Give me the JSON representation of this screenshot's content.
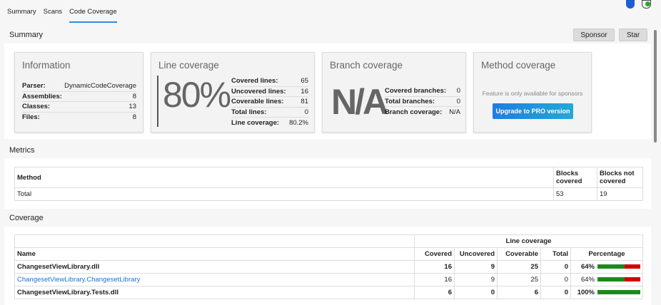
{
  "tabs": [
    {
      "label": "Summary"
    },
    {
      "label": "Scans"
    },
    {
      "label": "Code Coverage"
    }
  ],
  "summary": {
    "title": "Summary",
    "sponsor": "Sponsor",
    "star": "Star"
  },
  "information": {
    "title": "Information",
    "rows": [
      {
        "k": "Parser:",
        "v": "DynamicCodeCoverage"
      },
      {
        "k": "Assemblies:",
        "v": "8"
      },
      {
        "k": "Classes:",
        "v": "13"
      },
      {
        "k": "Files:",
        "v": "8"
      }
    ]
  },
  "line_coverage": {
    "title": "Line coverage",
    "big": "80%",
    "rows": [
      {
        "k": "Covered lines:",
        "v": "65"
      },
      {
        "k": "Uncovered lines:",
        "v": "16"
      },
      {
        "k": "Coverable lines:",
        "v": "81"
      },
      {
        "k": "Total lines:",
        "v": "0"
      },
      {
        "k": "Line coverage:",
        "v": "80.2%"
      }
    ]
  },
  "branch_coverage": {
    "title": "Branch coverage",
    "big": "N/A",
    "rows": [
      {
        "k": "Covered branches:",
        "v": "0"
      },
      {
        "k": "Total branches:",
        "v": "0"
      },
      {
        "k": "Branch coverage:",
        "v": "N/A"
      }
    ]
  },
  "method_coverage": {
    "title": "Method coverage",
    "note": "Feature is only available for sponsors",
    "button": "Upgrade to PRO version"
  },
  "metrics": {
    "title": "Metrics",
    "headers": [
      "Method",
      "Blocks covered",
      "Blocks not covered"
    ],
    "row": [
      "Total",
      "53",
      "19"
    ]
  },
  "coverage": {
    "title": "Coverage",
    "group_header": "Line coverage",
    "headers": [
      "Name",
      "Covered",
      "Uncovered",
      "Coverable",
      "Total",
      "Percentage"
    ],
    "rows": [
      {
        "name": "ChangesetViewLibrary.dll",
        "covered": "16",
        "uncovered": "9",
        "coverable": "25",
        "total": "0",
        "pct_label": "64%",
        "pct": 64,
        "bold": true
      },
      {
        "name": "ChangesetViewLibrary.ChangesetLibrary",
        "covered": "16",
        "uncovered": "9",
        "coverable": "25",
        "total": "0",
        "pct_label": "64%",
        "pct": 64,
        "link": true
      },
      {
        "name": "ChangesetViewLibrary.Tests.dll",
        "covered": "6",
        "uncovered": "0",
        "coverable": "6",
        "total": "0",
        "pct_label": "100%",
        "pct": 100,
        "bold": true
      }
    ]
  },
  "colors": {
    "accent": "#2b8ee0",
    "covered": "#1b8a1b",
    "uncovered": "#d40000",
    "link": "#1a73d8"
  }
}
